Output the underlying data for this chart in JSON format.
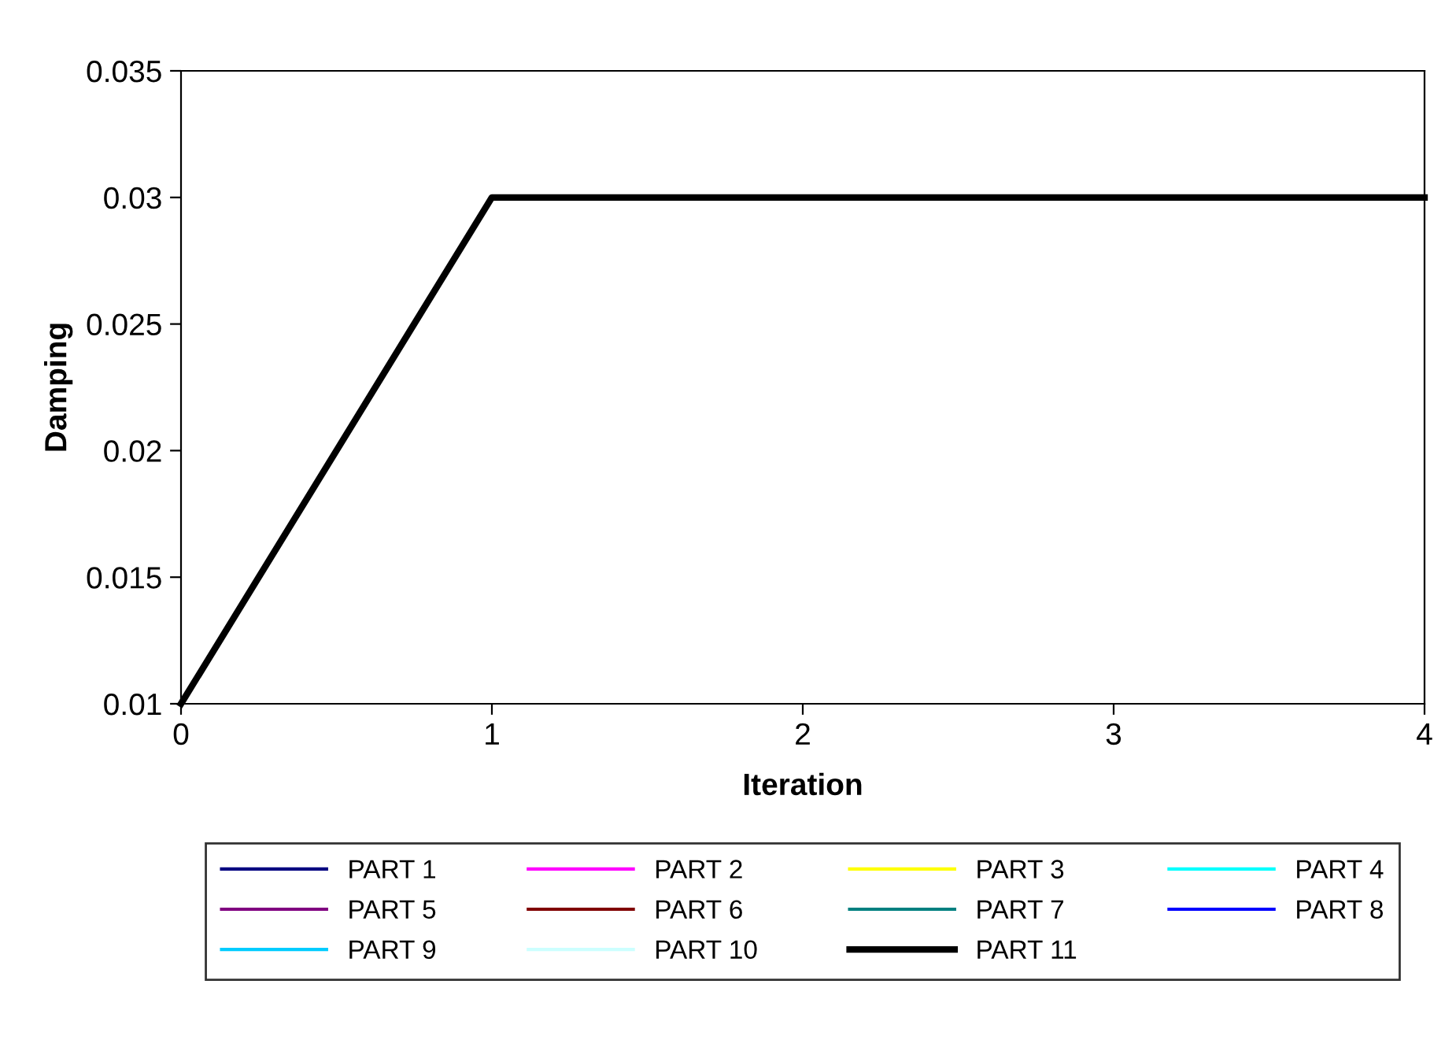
{
  "chart_data": {
    "type": "line",
    "xlabel": "Iteration",
    "ylabel": "Damping",
    "x": [
      0,
      1,
      2,
      3,
      4
    ],
    "xlim": [
      0,
      4
    ],
    "xticks": [
      0,
      1,
      2,
      3,
      4
    ],
    "ylim": [
      0.01,
      0.035
    ],
    "yticks": [
      0.01,
      0.015,
      0.02,
      0.025,
      0.03,
      0.035
    ],
    "grid": false,
    "legend": "bottom",
    "marker": "none",
    "line_style": "solid",
    "series": [
      {
        "name": "PART 1",
        "color": "#000080",
        "values": [
          null,
          null,
          null,
          null,
          null
        ]
      },
      {
        "name": "PART 2",
        "color": "#ff00ff",
        "values": [
          null,
          null,
          null,
          null,
          null
        ]
      },
      {
        "name": "PART 3",
        "color": "#ffff00",
        "values": [
          null,
          null,
          null,
          null,
          null
        ]
      },
      {
        "name": "PART 4",
        "color": "#00ffff",
        "values": [
          null,
          null,
          null,
          null,
          null
        ]
      },
      {
        "name": "PART 5",
        "color": "#800080",
        "values": [
          null,
          null,
          null,
          null,
          null
        ]
      },
      {
        "name": "PART 6",
        "color": "#800000",
        "values": [
          null,
          null,
          null,
          null,
          null
        ]
      },
      {
        "name": "PART 7",
        "color": "#008080",
        "values": [
          null,
          null,
          null,
          null,
          null
        ]
      },
      {
        "name": "PART 8",
        "color": "#0000ff",
        "values": [
          null,
          null,
          null,
          null,
          null
        ]
      },
      {
        "name": "PART 9",
        "color": "#00ccff",
        "values": [
          null,
          null,
          null,
          null,
          null
        ]
      },
      {
        "name": "PART 10",
        "color": "#ccffff",
        "values": [
          null,
          null,
          null,
          null,
          null
        ]
      },
      {
        "name": "PART 11",
        "color": "#000000",
        "values": [
          0.01,
          0.03,
          0.03,
          0.03,
          0.03
        ]
      }
    ]
  }
}
